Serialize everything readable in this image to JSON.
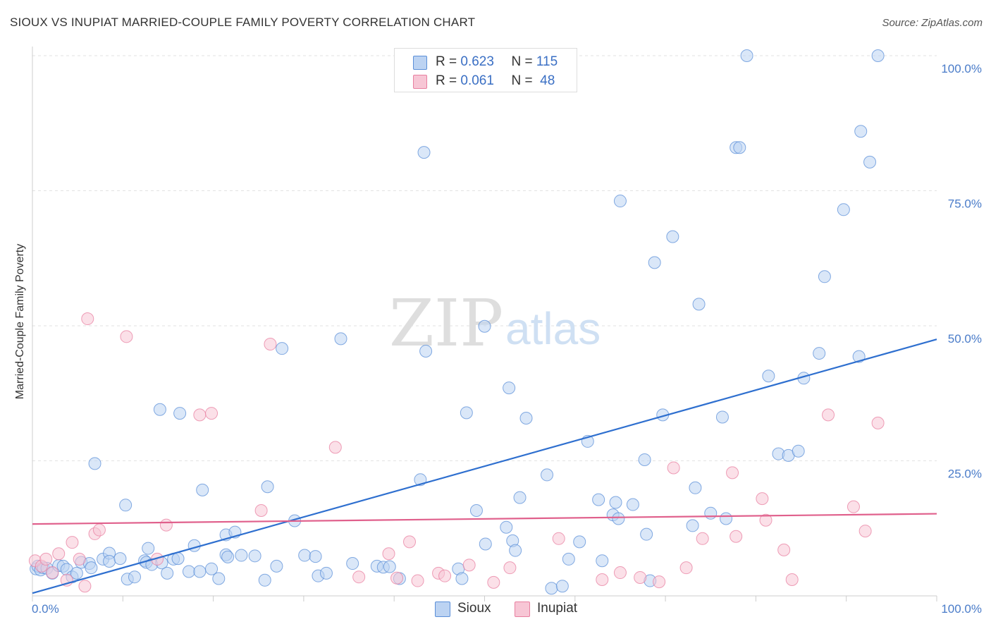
{
  "title": "SIOUX VS INUPIAT MARRIED-COUPLE FAMILY POVERTY CORRELATION CHART",
  "source": "Source: ZipAtlas.com",
  "watermark": {
    "zip": "ZIP",
    "atlas": "atlas"
  },
  "colors": {
    "sioux": "#5b8fd8",
    "sioux_fill": "#bcd3f2",
    "inupiat": "#e87fa0",
    "inupiat_fill": "#f7c6d5",
    "sioux_line": "#2e6fcf",
    "inupiat_line": "#e0608c"
  },
  "legend": {
    "rows": [
      {
        "r_label": "R = ",
        "r_value": "0.623",
        "n_label": "N = ",
        "n_value": "115"
      },
      {
        "r_label": "R = ",
        "r_value": "0.061",
        "n_label": "N = ",
        "n_value": " 48"
      }
    ]
  },
  "bottom_legend": [
    "Sioux",
    "Inupiat"
  ],
  "chart_data": {
    "type": "scatter",
    "title": "SIOUX VS INUPIAT MARRIED-COUPLE FAMILY POVERTY CORRELATION CHART",
    "xlabel": "",
    "ylabel": "Married-Couple Family Poverty",
    "xlim": [
      0,
      100
    ],
    "ylim": [
      0,
      100
    ],
    "x_tick_labels": [
      "0.0%",
      "100.0%"
    ],
    "y_tick_labels": [
      "25.0%",
      "50.0%",
      "75.0%",
      "100.0%"
    ],
    "y_ticks": [
      25,
      50,
      75,
      100
    ],
    "series": [
      {
        "name": "Sioux",
        "r": 0.623,
        "n": 115,
        "trend": [
          [
            0,
            0.5
          ],
          [
            100,
            47.5
          ]
        ],
        "points": [
          [
            0.4,
            5
          ],
          [
            0.6,
            5.5
          ],
          [
            0.9,
            4.8
          ],
          [
            1.2,
            5.2
          ],
          [
            1.6,
            5.1
          ],
          [
            2.2,
            4.2
          ],
          [
            2.9,
            5.6
          ],
          [
            3.4,
            5.5
          ],
          [
            3.8,
            4.9
          ],
          [
            4.4,
            3.5
          ],
          [
            4.9,
            4.2
          ],
          [
            5.4,
            6.2
          ],
          [
            6.3,
            6.0
          ],
          [
            6.5,
            5.2
          ],
          [
            6.9,
            24.5
          ],
          [
            7.8,
            6.8
          ],
          [
            8.5,
            7.9
          ],
          [
            8.5,
            6.4
          ],
          [
            9.7,
            6.9
          ],
          [
            10.3,
            16.8
          ],
          [
            10.5,
            3.1
          ],
          [
            11.3,
            3.5
          ],
          [
            12.4,
            6.5
          ],
          [
            12.6,
            6.2
          ],
          [
            12.8,
            8.8
          ],
          [
            13.2,
            5.8
          ],
          [
            14.3,
            6.1
          ],
          [
            14.1,
            34.5
          ],
          [
            14.9,
            4.2
          ],
          [
            15.6,
            6.8
          ],
          [
            16.1,
            6.9
          ],
          [
            16.3,
            33.8
          ],
          [
            17.3,
            4.5
          ],
          [
            17.9,
            9.3
          ],
          [
            18.5,
            4.5
          ],
          [
            18.8,
            19.6
          ],
          [
            19.8,
            5.0
          ],
          [
            20.6,
            3.2
          ],
          [
            21.4,
            7.6
          ],
          [
            21.4,
            11.3
          ],
          [
            21.6,
            7.2
          ],
          [
            22.4,
            11.8
          ],
          [
            23.1,
            7.5
          ],
          [
            24.6,
            7.4
          ],
          [
            25.7,
            2.9
          ],
          [
            26.0,
            20.2
          ],
          [
            27.0,
            5.5
          ],
          [
            27.6,
            45.8
          ],
          [
            29.0,
            13.9
          ],
          [
            30.1,
            7.5
          ],
          [
            31.3,
            7.3
          ],
          [
            31.6,
            3.7
          ],
          [
            32.5,
            4.2
          ],
          [
            34.1,
            47.6
          ],
          [
            35.4,
            6.0
          ],
          [
            38.1,
            5.5
          ],
          [
            38.8,
            5.3
          ],
          [
            39.5,
            5.4
          ],
          [
            40.6,
            3.2
          ],
          [
            42.9,
            21.5
          ],
          [
            43.3,
            82.1
          ],
          [
            43.5,
            45.3
          ],
          [
            47.1,
            5.0
          ],
          [
            47.5,
            3.2
          ],
          [
            48.0,
            33.9
          ],
          [
            49.1,
            15.8
          ],
          [
            50.0,
            49.9
          ],
          [
            50.1,
            9.6
          ],
          [
            52.4,
            12.7
          ],
          [
            52.7,
            38.5
          ],
          [
            53.1,
            10.2
          ],
          [
            53.4,
            8.4
          ],
          [
            53.9,
            18.2
          ],
          [
            54.6,
            32.9
          ],
          [
            56.9,
            22.4
          ],
          [
            57.4,
            1.4
          ],
          [
            58.6,
            1.8
          ],
          [
            59.3,
            6.8
          ],
          [
            60.5,
            10.0
          ],
          [
            61.4,
            28.6
          ],
          [
            62.6,
            17.8
          ],
          [
            63.0,
            6.5
          ],
          [
            64.2,
            15.0
          ],
          [
            64.5,
            17.3
          ],
          [
            64.8,
            14.3
          ],
          [
            65.0,
            73.1
          ],
          [
            66.4,
            16.9
          ],
          [
            67.7,
            25.2
          ],
          [
            67.9,
            11.4
          ],
          [
            68.3,
            2.8
          ],
          [
            68.8,
            61.7
          ],
          [
            69.7,
            33.5
          ],
          [
            70.8,
            66.5
          ],
          [
            73.0,
            13.0
          ],
          [
            73.3,
            20.0
          ],
          [
            73.7,
            54.0
          ],
          [
            75.0,
            15.3
          ],
          [
            76.3,
            33.1
          ],
          [
            76.7,
            14.3
          ],
          [
            77.8,
            83.0
          ],
          [
            78.2,
            83.0
          ],
          [
            79.0,
            100
          ],
          [
            81.4,
            40.7
          ],
          [
            82.5,
            26.3
          ],
          [
            83.6,
            26.0
          ],
          [
            84.7,
            26.8
          ],
          [
            85.3,
            40.3
          ],
          [
            87.0,
            44.9
          ],
          [
            87.6,
            59.1
          ],
          [
            89.7,
            71.5
          ],
          [
            91.4,
            44.3
          ],
          [
            91.6,
            86.0
          ],
          [
            92.6,
            80.3
          ],
          [
            93.5,
            100
          ]
        ]
      },
      {
        "name": "Inupiat",
        "r": 0.061,
        "n": 48,
        "trend": [
          [
            0,
            13.3
          ],
          [
            100,
            15.2
          ]
        ],
        "points": [
          [
            0.3,
            6.5
          ],
          [
            1.0,
            5.5
          ],
          [
            1.5,
            6.8
          ],
          [
            2.2,
            4.3
          ],
          [
            2.9,
            7.8
          ],
          [
            3.8,
            2.9
          ],
          [
            4.4,
            9.9
          ],
          [
            5.2,
            6.8
          ],
          [
            5.8,
            1.8
          ],
          [
            6.1,
            51.3
          ],
          [
            6.9,
            11.5
          ],
          [
            7.4,
            12.2
          ],
          [
            10.4,
            48.0
          ],
          [
            13.8,
            6.8
          ],
          [
            14.8,
            13.1
          ],
          [
            18.5,
            33.5
          ],
          [
            19.8,
            33.8
          ],
          [
            25.3,
            15.8
          ],
          [
            26.3,
            46.6
          ],
          [
            33.5,
            27.5
          ],
          [
            36.1,
            3.5
          ],
          [
            39.4,
            7.8
          ],
          [
            40.3,
            3.3
          ],
          [
            41.7,
            10.0
          ],
          [
            42.6,
            2.8
          ],
          [
            44.9,
            4.2
          ],
          [
            45.6,
            3.7
          ],
          [
            48.3,
            5.7
          ],
          [
            51.0,
            2.5
          ],
          [
            52.8,
            5.2
          ],
          [
            58.2,
            10.6
          ],
          [
            63.0,
            3.0
          ],
          [
            65.0,
            4.3
          ],
          [
            67.2,
            3.4
          ],
          [
            69.3,
            2.6
          ],
          [
            70.9,
            23.7
          ],
          [
            72.3,
            5.2
          ],
          [
            74.1,
            10.6
          ],
          [
            77.4,
            22.8
          ],
          [
            77.8,
            11.0
          ],
          [
            80.7,
            18.0
          ],
          [
            81.1,
            14.0
          ],
          [
            83.1,
            8.5
          ],
          [
            84.0,
            3.0
          ],
          [
            88.0,
            33.5
          ],
          [
            90.8,
            16.5
          ],
          [
            92.1,
            12.0
          ],
          [
            93.5,
            32.0
          ]
        ]
      }
    ]
  }
}
